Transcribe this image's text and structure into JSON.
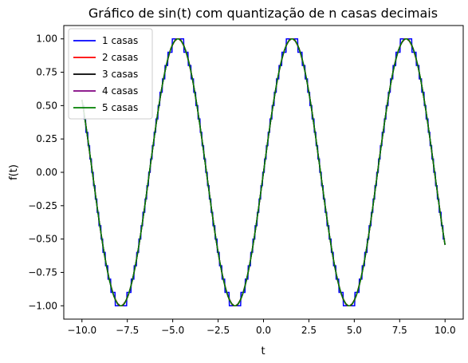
{
  "chart_data": {
    "type": "line",
    "title": "Gráfico de sin(t) com quantização de n casas decimais",
    "xlabel": "t",
    "ylabel": "f(t)",
    "xlim": [
      -11.0,
      11.0
    ],
    "ylim": [
      -1.1,
      1.1
    ],
    "x_range": [
      -10,
      10
    ],
    "function": "sin(t)",
    "xticks": [
      -10.0,
      -7.5,
      -5.0,
      -2.5,
      0.0,
      2.5,
      5.0,
      7.5,
      10.0
    ],
    "xtick_labels": [
      "−10.0",
      "−7.5",
      "−5.0",
      "−2.5",
      "0.0",
      "2.5",
      "5.0",
      "7.5",
      "10.0"
    ],
    "yticks": [
      -1.0,
      -0.75,
      -0.5,
      -0.25,
      0.0,
      0.25,
      0.5,
      0.75,
      1.0
    ],
    "ytick_labels": [
      "−1.00",
      "−0.75",
      "−0.50",
      "−0.25",
      "0.00",
      "0.25",
      "0.50",
      "0.75",
      "1.00"
    ],
    "grid": false,
    "legend_position": "upper-left",
    "series": [
      {
        "name": "1 casas",
        "decimals": 1,
        "color": "#0000ff"
      },
      {
        "name": "2 casas",
        "decimals": 2,
        "color": "#ff0000"
      },
      {
        "name": "3 casas",
        "decimals": 3,
        "color": "#000000"
      },
      {
        "name": "4 casas",
        "decimals": 4,
        "color": "#800080"
      },
      {
        "name": "5 casas",
        "decimals": 5,
        "color": "#008000"
      }
    ]
  }
}
